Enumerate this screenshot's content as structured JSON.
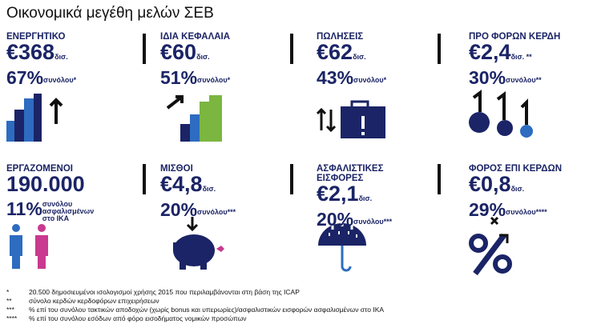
{
  "header": {
    "title": "Οικονομικά μεγέθη μελών ΣΕΒ"
  },
  "tiles": [
    {
      "label": [
        "ΕΝΕΡΓΗΤΙΚΟ"
      ],
      "amount": "€368",
      "unit": "δισ.",
      "share": "67%",
      "note": [
        "συνόλου*"
      ]
    },
    {
      "label": [
        "ΙΔΙΑ ΚΕΦΑΛΑΙΑ"
      ],
      "amount": "€60",
      "unit": "δισ.",
      "share": "51%",
      "note": [
        "συνόλου*"
      ]
    },
    {
      "label": [
        "ΠΩΛΗΣΕΙΣ"
      ],
      "amount": "€62",
      "unit": "δισ.",
      "share": "43%",
      "note": [
        "συνόλου*"
      ]
    },
    {
      "label": [
        "ΠΡΟ ΦΟΡΩΝ ΚΕΡΔΗ"
      ],
      "amount": "€2,4",
      "unit": "δισ. **",
      "share": "30%",
      "note": [
        "συνόλου**"
      ]
    },
    {
      "label": [
        "ΕΡΓΑΖΟΜΕΝΟΙ"
      ],
      "amount": "190.000",
      "share": "11%",
      "note": [
        "συνόλου",
        "ασφαλισμένων",
        "στο ΙΚΑ"
      ]
    },
    {
      "label": [
        "ΜΙΣΘΟΙ"
      ],
      "amount": "€4,8",
      "unit": "δισ.",
      "share": "20%",
      "note": [
        "συνόλου***"
      ]
    },
    {
      "label": [
        "ΑΣΦΑΛΙΣΤΙΚΕΣ",
        "ΕΙΣΦΟΡΕΣ"
      ],
      "amount": "€2,1",
      "unit": "δισ.",
      "share": "20%",
      "note": [
        "συνόλου***"
      ]
    },
    {
      "label": [
        "ΦΟΡΟΣ ΕΠΙ ΚΕΡΔΩΝ"
      ],
      "amount": "€0,8",
      "unit": "δισ.",
      "share": "29%",
      "note": [
        "συνόλου****"
      ]
    }
  ],
  "footnotes": [
    {
      "marker": "*",
      "text": "20.500 δημοσιευμένοι ισολογισμοί χρήσης 2015 που περιλαμβάνονται στη βάση της ICAP"
    },
    {
      "marker": "**",
      "text": "σύνολο κερδών κερδοφόρων επιχειρήσεων"
    },
    {
      "marker": "***",
      "text": "% επί του συνόλου τακτικών αποδοχών (χωρίς bonus και υπερωρίες)/ασφαλιστικών εισφορών ασφαλισμένων στο ΙΚΑ"
    },
    {
      "marker": "****",
      "text": "% επί του συνόλου εσόδων από φόρο εισοδήματος νομικών προσώπων"
    }
  ]
}
